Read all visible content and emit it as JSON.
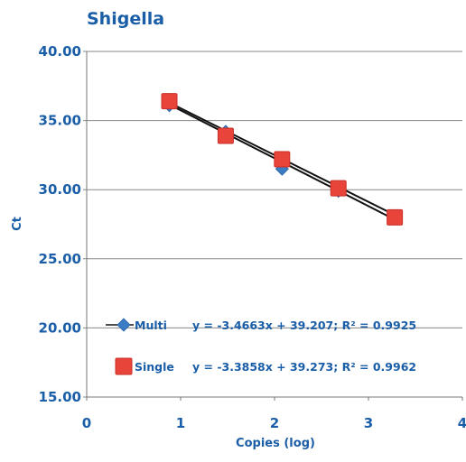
{
  "chart_data": {
    "type": "scatter",
    "title": "Shigella",
    "xlabel": "Copies (log)",
    "ylabel": "Ct",
    "xlim": [
      0,
      4
    ],
    "ylim": [
      15,
      40
    ],
    "x_ticks": [
      "0",
      "1",
      "2",
      "3",
      "4"
    ],
    "y_ticks": [
      "40.00",
      "35.00",
      "30.00",
      "25.00",
      "20.00",
      "15.00"
    ],
    "grid": "horizontal",
    "legend_position": "bottom-left",
    "series": [
      {
        "name": "Multi",
        "marker": "diamond",
        "color": "#3a7dc4",
        "equation": "y = -3.4663x + 39.207; R² = 0.9925",
        "points": [
          {
            "x": 0.88,
            "y": 36.1
          },
          {
            "x": 1.48,
            "y": 34.2
          },
          {
            "x": 2.08,
            "y": 31.5
          },
          {
            "x": 2.68,
            "y": 29.9
          },
          {
            "x": 3.28,
            "y": 27.9
          }
        ],
        "trendline": {
          "slope": -3.4663,
          "intercept": 39.207
        }
      },
      {
        "name": "Single",
        "marker": "square",
        "color": "#e8443a",
        "equation": "y = -3.3858x + 39.273; R² = 0.9962",
        "points": [
          {
            "x": 0.88,
            "y": 36.4
          },
          {
            "x": 1.48,
            "y": 33.9
          },
          {
            "x": 2.08,
            "y": 32.2
          },
          {
            "x": 2.68,
            "y": 30.1
          },
          {
            "x": 3.28,
            "y": 28.0
          }
        ],
        "trendline": {
          "slope": -3.3858,
          "intercept": 39.273
        }
      }
    ]
  }
}
